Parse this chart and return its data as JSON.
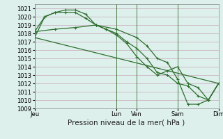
{
  "background_color": "#ddf0ec",
  "grid_color": "#c8a8b8",
  "line_color": "#2d6e2d",
  "ylim": [
    1009,
    1021.5
  ],
  "ytick_vals": [
    1009,
    1010,
    1011,
    1012,
    1013,
    1014,
    1015,
    1016,
    1017,
    1018,
    1019,
    1020,
    1021
  ],
  "xlabel": "Pression niveau de la mer( hPa )",
  "xlabel_fontsize": 7.5,
  "tick_fontsize": 6,
  "xlim": [
    0,
    9.0
  ],
  "xtick_positions": [
    0,
    4,
    5,
    7,
    9
  ],
  "xtick_labels": [
    "Jeu",
    "Lun",
    "Ven",
    "Sam",
    "Dim"
  ],
  "vlines": [
    0,
    4,
    5,
    7,
    9
  ],
  "series1": {
    "x": [
      0,
      0.5,
      1.0,
      1.5,
      2.0,
      2.5,
      3.0,
      3.5,
      4.0,
      4.5,
      5.0,
      5.5,
      6.0,
      6.5,
      7.0,
      7.5,
      8.0,
      8.5,
      9.0
    ],
    "y": [
      1017.5,
      1020.0,
      1020.5,
      1020.8,
      1020.8,
      1020.3,
      1019.0,
      1018.5,
      1018.0,
      1017.0,
      1016.2,
      1015.0,
      1013.3,
      1013.0,
      1012.0,
      1011.7,
      1010.5,
      1010.0,
      1012.0
    ]
  },
  "series2": {
    "x": [
      0,
      0.5,
      1.0,
      1.5,
      2.0,
      2.5,
      3.0,
      3.5,
      4.0,
      4.5,
      5.0,
      5.5,
      6.0,
      6.5,
      7.0,
      7.5,
      8.0,
      8.5,
      9.0
    ],
    "y": [
      1018.2,
      1020.0,
      1020.5,
      1020.5,
      1020.5,
      1019.8,
      1019.0,
      1018.5,
      1017.8,
      1016.8,
      1015.2,
      1014.0,
      1013.0,
      1013.5,
      1014.0,
      1012.0,
      1011.5,
      1010.0,
      1012.0
    ]
  },
  "series3": {
    "x": [
      0,
      1.0,
      2.0,
      3.0,
      4.0,
      5.0,
      5.5,
      6.0,
      6.5,
      7.0,
      7.5,
      8.0,
      8.5,
      9.0
    ],
    "y": [
      1018.2,
      1018.5,
      1018.7,
      1019.0,
      1018.5,
      1017.5,
      1016.5,
      1015.0,
      1014.5,
      1012.5,
      1009.5,
      1009.5,
      1010.0,
      1012.0
    ]
  },
  "series4": {
    "x": [
      0,
      9.0
    ],
    "y": [
      1017.5,
      1012.0
    ]
  }
}
